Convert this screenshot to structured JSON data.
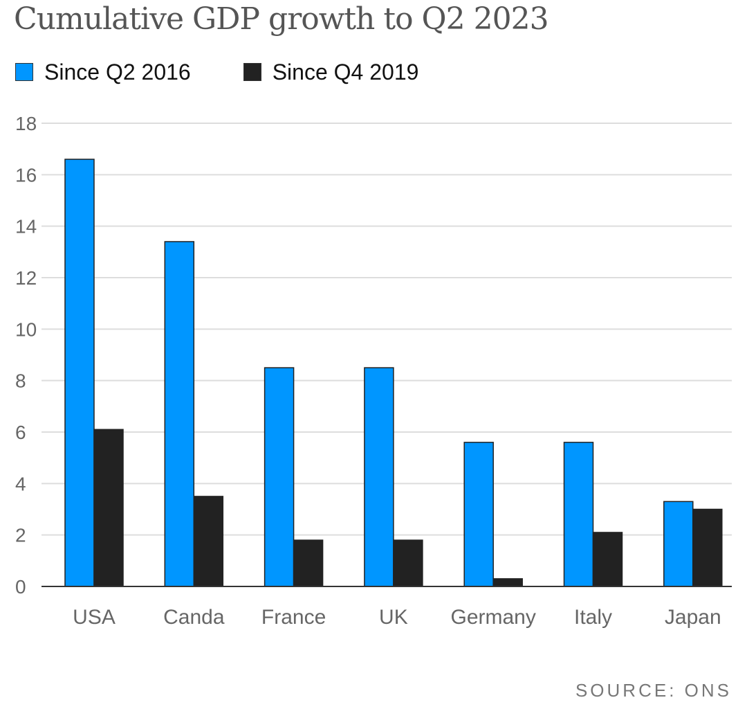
{
  "chart_data": {
    "type": "bar",
    "title": "Cumulative GDP growth to Q2 2023",
    "categories": [
      "USA",
      "Canda",
      "France",
      "UK",
      "Germany",
      "Italy",
      "Japan"
    ],
    "series": [
      {
        "name": "Since Q2 2016",
        "color": "#0096FF",
        "values": [
          16.6,
          13.4,
          8.5,
          8.5,
          5.6,
          5.6,
          3.3
        ]
      },
      {
        "name": "Since Q4 2019",
        "color": "#222222",
        "values": [
          6.1,
          3.5,
          1.8,
          1.8,
          0.3,
          2.1,
          3.0
        ]
      }
    ],
    "xlabel": "",
    "ylabel": "",
    "ylim": [
      0,
      18
    ],
    "yticks": [
      "0",
      "2",
      "4",
      "6",
      "8",
      "10",
      "12",
      "14",
      "16",
      "18"
    ],
    "grid": true,
    "legend_position": "top-left",
    "source": "SOURCE: ONS"
  }
}
